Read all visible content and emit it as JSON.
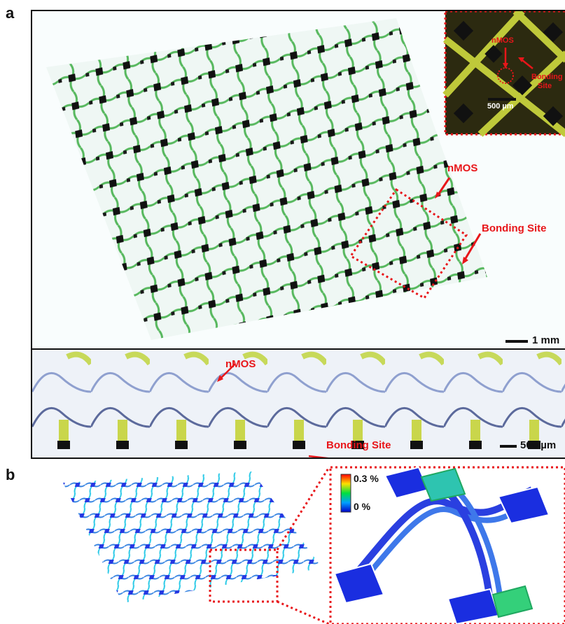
{
  "panels": {
    "a": {
      "letter": "a",
      "top_labels": {
        "nmos": "nMOS",
        "bonding_site": "Bonding Site",
        "scale": "1 mm"
      },
      "inset_labels": {
        "nmos": "nMOS",
        "bonding_line1": "Bonding",
        "bonding_line2": "Site",
        "scale": "500 µm"
      },
      "bottom_labels": {
        "nmos": "nMOS",
        "bonding_site": "Bonding Site",
        "scale": "500 µm"
      }
    },
    "b": {
      "letter": "b",
      "colorbar": {
        "max_label": "0.3 %",
        "min_label": "0 %"
      }
    }
  },
  "colors": {
    "annotation_red": "#e8161a",
    "trace_green": "#3fa34a",
    "pad_black": "#111111",
    "fem_blue": "#1a2ee0"
  }
}
